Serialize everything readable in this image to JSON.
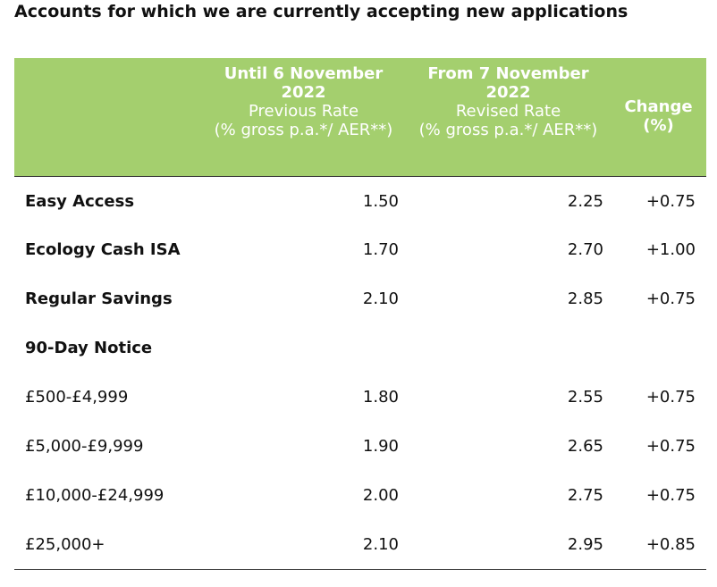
{
  "page": {
    "title": "Accounts for which we are currently accepting new applications"
  },
  "table": {
    "headers": {
      "previous": {
        "line1": "Until 6 November",
        "line2": "2022",
        "line3": "Previous Rate",
        "line4": "(% gross p.a.*/ AER**)"
      },
      "revised": {
        "line1": "From 7 November",
        "line2": "2022",
        "line3": "Revised Rate",
        "line4": "(% gross p.a.*/ AER**)"
      },
      "change": {
        "line1": "Change",
        "line2": "(%)"
      }
    },
    "rows": [
      {
        "name": "Easy Access",
        "previous": "1.50",
        "revised": "2.25",
        "change": "+0.75"
      },
      {
        "name": "Ecology Cash ISA",
        "previous": "1.70",
        "revised": "2.70",
        "change": "+1.00"
      },
      {
        "name": "Regular Savings",
        "previous": "2.10",
        "revised": "2.85",
        "change": "+0.75"
      },
      {
        "name": "90-Day Notice",
        "previous": "",
        "revised": "",
        "change": ""
      },
      {
        "name": "£500-£4,999",
        "previous": "1.80",
        "revised": "2.55",
        "change": "+0.75"
      },
      {
        "name": "£5,000-£9,999",
        "previous": "1.90",
        "revised": "2.65",
        "change": "+0.75"
      },
      {
        "name": "£10,000-£24,999",
        "previous": "2.00",
        "revised": "2.75",
        "change": "+0.75"
      },
      {
        "name": "£25,000+",
        "previous": "2.10",
        "revised": "2.95",
        "change": "+0.85"
      }
    ]
  },
  "colors": {
    "header_bg": "#a4cf6e",
    "header_text": "#ffffff",
    "body_text": "#111111",
    "rule": "#333333"
  }
}
